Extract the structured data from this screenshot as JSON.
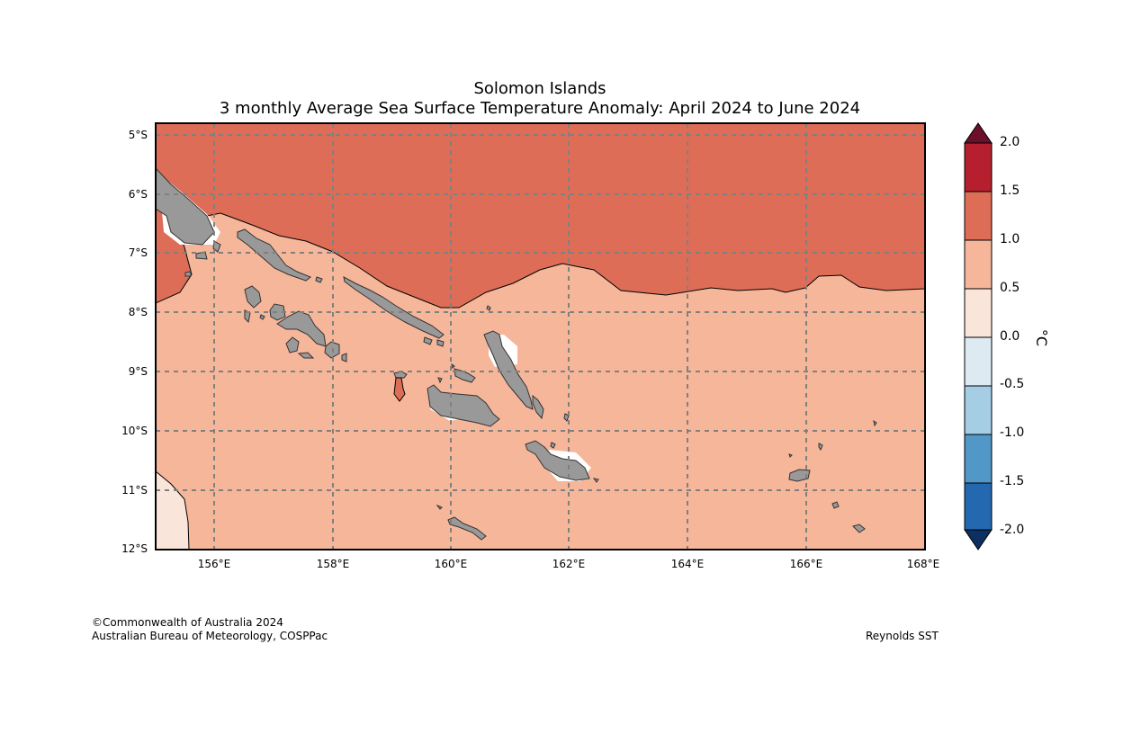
{
  "header": {
    "title_line1": "Solomon Islands",
    "title_line2": "3 monthly Average Sea Surface Temperature Anomaly: April 2024 to June 2024"
  },
  "axes": {
    "lat_labels": [
      "5°S",
      "6°S",
      "7°S",
      "8°S",
      "9°S",
      "10°S",
      "11°S",
      "12°S"
    ],
    "lon_labels": [
      "156°E",
      "158°E",
      "160°E",
      "162°E",
      "164°E",
      "166°E",
      "168°E"
    ]
  },
  "colorbar": {
    "labels": [
      "2.0",
      "1.5",
      "1.0",
      "0.5",
      "0.0",
      "-0.5",
      "-1.0",
      "-1.5",
      "-2.0"
    ],
    "unit": "°C",
    "colors": [
      "#6b0f2a",
      "#b51f2e",
      "#dd6d56",
      "#f6b69a",
      "#fae5db",
      "#deeaf2",
      "#a5cde3",
      "#5198c8",
      "#2468af",
      "#0d2f61"
    ]
  },
  "map": {
    "band_colors": {
      "high": "#dd6d56",
      "mid": "#f6b69a",
      "low": "#fae5db"
    },
    "land_color": "#999999"
  },
  "footer": {
    "copyright": "©Commonwealth of Australia 2024",
    "org": "Australian Bureau of Meteorology, COSPPac",
    "source": "Reynolds SST"
  }
}
